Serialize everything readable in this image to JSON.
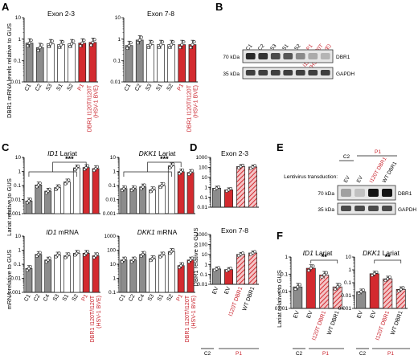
{
  "colors": {
    "control_gray": "#8c8c8c",
    "sibling_white": "#ffffff",
    "patient_red": "#d32a2f",
    "text_red": "#c8202a",
    "axis": "#111111"
  },
  "panels": {
    "A": {
      "letter": "A",
      "ylabel": "DBR1 mRNA levels relative to GUS"
    },
    "B": {
      "letter": "B",
      "lanes": [
        "C1",
        "C2",
        "S3",
        "S1",
        "S2"
      ],
      "patient_lane": "P1",
      "variant": "DBR1 I120T/I120T",
      "cohort": "(HSV-1 BVE)",
      "bands": [
        {
          "mw": "70 kDa",
          "protein": "DBR1",
          "intensity": [
            0.9,
            0.85,
            0.75,
            0.7,
            0.45,
            0.3,
            0.25
          ]
        },
        {
          "mw": "35 kDa",
          "protein": "GAPDH",
          "intensity": [
            0.8,
            0.8,
            0.8,
            0.8,
            0.8,
            0.8,
            0.8
          ]
        }
      ]
    },
    "C": {
      "letter": "C",
      "ylabel_top": "Lariat relative to GUS",
      "ylabel_bottom": "mRNA relative to GUS"
    },
    "D": {
      "letter": "D",
      "ylabel": "DBR1 relative to GUS",
      "xcats": [
        "EV",
        "EV",
        "I120T DBR1",
        "WT DBR1"
      ]
    },
    "E": {
      "letter": "E",
      "c2": "C2",
      "p1": "P1",
      "transduction": "Lentivirus transduction:",
      "lanes": [
        "EV",
        "EV",
        "I120T DBR1",
        "WT DBR1"
      ],
      "bands": [
        {
          "mw": "70 kDa",
          "protein": "DBR1",
          "intensity": [
            0.35,
            0.2,
            1.0,
            1.0
          ]
        },
        {
          "mw": "35 kDa",
          "protein": "GAPDH",
          "intensity": [
            0.75,
            0.75,
            0.75,
            0.75
          ]
        }
      ]
    },
    "F": {
      "letter": "F",
      "ylabel": "Lariat relative to GUS",
      "xcats": [
        "EV",
        "EV",
        "I120T DBR1",
        "WT DBR1"
      ]
    },
    "group_labels": {
      "c2": "C2",
      "p1": "P1"
    }
  },
  "chart_data": [
    {
      "id": "A-exon23",
      "type": "bar",
      "title": "Exon 2-3",
      "ylabel": "DBR1 mRNA levels relative to GUS",
      "yscale": "log",
      "ylim": [
        0.01,
        10
      ],
      "categories": [
        "C1",
        "C2",
        "S3",
        "S1",
        "S2",
        "P1",
        "DBR1 I120T/I120T (HSV-1 BVE)"
      ],
      "values": [
        0.65,
        0.4,
        0.6,
        0.55,
        0.6,
        0.65,
        0.7
      ],
      "sig": ""
    },
    {
      "id": "A-exon78",
      "type": "bar",
      "title": "Exon 7-8",
      "yscale": "log",
      "ylim": [
        0.01,
        10
      ],
      "categories": [
        "C1",
        "C2",
        "S3",
        "S1",
        "S2",
        "P1",
        "DBR1 I120T/I120T (HSV-1 BVE)"
      ],
      "values": [
        0.5,
        0.9,
        0.55,
        0.55,
        0.55,
        0.55,
        0.55
      ],
      "sig": ""
    },
    {
      "id": "C-ID1-lariat",
      "type": "bar",
      "title": "ID1 Lariat",
      "ylabel": "Lariat relative to GUS",
      "yscale": "log",
      "ylim": [
        0.001,
        10
      ],
      "categories": [
        "C1",
        "C2",
        "C4",
        "S3",
        "S1",
        "S2",
        "P1",
        "DBR1 I120T/I120T (HSV-1 BVE)"
      ],
      "values": [
        0.008,
        0.11,
        0.04,
        0.07,
        0.18,
        1.8,
        1.9,
        1.6
      ],
      "sig": "***"
    },
    {
      "id": "C-DKK1-lariat",
      "type": "bar",
      "title": "DKK1 Lariat",
      "yscale": "log",
      "ylim": [
        0.001,
        10
      ],
      "categories": [
        "C1",
        "C2",
        "C4",
        "S3",
        "S1",
        "S2",
        "P1",
        "DBR1 I120T/I120T (HSV-1 BVE)"
      ],
      "values": [
        0.06,
        0.06,
        0.08,
        0.05,
        0.1,
        2.5,
        0.95,
        0.85
      ],
      "sig": "***"
    },
    {
      "id": "C-ID1-mRNA",
      "type": "bar",
      "title": "ID1 mRNA",
      "ylabel": "mRNA relative to GUS",
      "yscale": "log",
      "ylim": [
        0.001,
        10
      ],
      "categories": [
        "C1",
        "C2",
        "C4",
        "S3",
        "S1",
        "S2",
        "P1",
        "DBR1 I120T/I120T (HSV-1 BVE)"
      ],
      "values": [
        0.05,
        0.5,
        0.2,
        0.45,
        0.4,
        0.6,
        0.6,
        0.4
      ],
      "sig": ""
    },
    {
      "id": "C-DKK1-mRNA",
      "type": "bar",
      "title": "DKK1 mRNA",
      "yscale": "log",
      "ylim": [
        0.1,
        1000
      ],
      "categories": [
        "C1",
        "C2",
        "C4",
        "S3",
        "S1",
        "S2",
        "P1",
        "DBR1 I120T/I120T (HSV-1 BVE)"
      ],
      "values": [
        20,
        20,
        50,
        25,
        45,
        80,
        8,
        20
      ],
      "sig": ""
    },
    {
      "id": "D-exon23",
      "type": "bar",
      "title": "Exon 2-3",
      "ylabel": "DBR1 relative to GUS",
      "yscale": "log",
      "ylim": [
        0.01,
        1000
      ],
      "categories": [
        "EV",
        "EV",
        "I120T DBR1",
        "WT DBR1"
      ],
      "values": [
        0.8,
        0.55,
        120,
        110
      ],
      "sig": ""
    },
    {
      "id": "D-exon78",
      "type": "bar",
      "title": "Exon 7-8",
      "yscale": "log",
      "ylim": [
        0.01,
        1000
      ],
      "categories": [
        "EV",
        "EV",
        "I120T DBR1",
        "WT DBR1"
      ],
      "values": [
        0.35,
        0.3,
        10,
        14
      ],
      "sig": ""
    },
    {
      "id": "F-ID1",
      "type": "bar",
      "title": "ID1 Lariat",
      "ylabel": "Lariat relative to GUS",
      "yscale": "log",
      "ylim": [
        0.001,
        1
      ],
      "categories": [
        "EV",
        "EV",
        "I120T DBR1",
        "WT DBR1"
      ],
      "values": [
        0.018,
        0.22,
        0.09,
        0.018
      ],
      "sig": "**"
    },
    {
      "id": "F-DKK1",
      "type": "bar",
      "title": "DKK1 Lariat",
      "yscale": "log",
      "ylim": [
        0.001,
        10
      ],
      "categories": [
        "EV",
        "EV",
        "I120T DBR1",
        "WT DBR1"
      ],
      "values": [
        0.02,
        0.5,
        0.2,
        0.03
      ],
      "sig": "**"
    }
  ]
}
